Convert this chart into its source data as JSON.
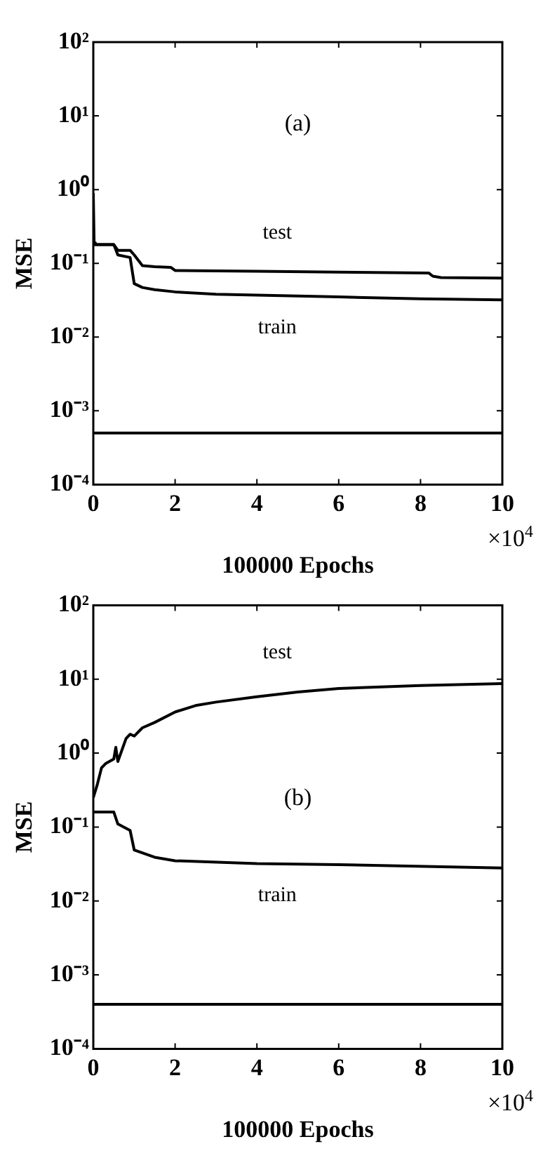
{
  "chart_data": [
    {
      "type": "line",
      "xlabel": "100000 Epochs",
      "ylabel": "MSE",
      "annotations": [
        "(a)",
        "×10$^{4}$"
      ],
      "log": "y",
      "grid": false,
      "legend": false,
      "marker": "none",
      "line_style": "solid",
      "xlim": [
        0,
        10
      ],
      "xticks": [
        0,
        2,
        4,
        6,
        8,
        10
      ],
      "ylim": [
        0.0001,
        100
      ],
      "yticks": [
        {
          "value": 0.0001,
          "label": "10⁻⁴"
        },
        {
          "value": 0.001,
          "label": "10⁻³"
        },
        {
          "value": 0.01,
          "label": "10⁻²"
        },
        {
          "value": 0.1,
          "label": "10⁻¹"
        },
        {
          "value": 1,
          "label": "10⁰"
        },
        {
          "value": 10,
          "label": "10¹"
        },
        {
          "value": 100,
          "label": "10²"
        }
      ],
      "ref_lines": [
        {
          "axis": "y",
          "value": 0.0005,
          "color": "#000000"
        }
      ],
      "series": [
        {
          "name": "test",
          "color": "#000000",
          "x": [
            0,
            0.02,
            0.05,
            0.5,
            0.6,
            0.9,
            1.0,
            1.2,
            1.5,
            1.9,
            2.0,
            4,
            6,
            8.2,
            8.3,
            8.5,
            10
          ],
          "values": [
            0.9,
            0.19,
            0.18,
            0.18,
            0.15,
            0.15,
            0.13,
            0.093,
            0.09,
            0.088,
            0.08,
            0.078,
            0.076,
            0.074,
            0.067,
            0.064,
            0.063
          ]
        },
        {
          "name": "train",
          "color": "#000000",
          "x": [
            0,
            0.5,
            0.6,
            0.9,
            1.0,
            1.2,
            1.5,
            2,
            3,
            4,
            6,
            8,
            10
          ],
          "values": [
            0.18,
            0.18,
            0.13,
            0.12,
            0.053,
            0.047,
            0.044,
            0.041,
            0.038,
            0.037,
            0.035,
            0.033,
            0.032
          ]
        }
      ]
    },
    {
      "type": "line",
      "xlabel": "100000 Epochs",
      "ylabel": "MSE",
      "annotations": [
        "(b)",
        "×10$^{4}$"
      ],
      "log": "y",
      "grid": false,
      "legend": false,
      "marker": "none",
      "line_style": "solid",
      "xlim": [
        0,
        10
      ],
      "xticks": [
        0,
        2,
        4,
        6,
        8,
        10
      ],
      "ylim": [
        0.0001,
        100
      ],
      "yticks": [
        {
          "value": 0.0001,
          "label": "10⁻⁴"
        },
        {
          "value": 0.001,
          "label": "10⁻³"
        },
        {
          "value": 0.01,
          "label": "10⁻²"
        },
        {
          "value": 0.1,
          "label": "10⁻¹"
        },
        {
          "value": 1,
          "label": "10⁰"
        },
        {
          "value": 10,
          "label": "10¹"
        },
        {
          "value": 100,
          "label": "10²"
        }
      ],
      "ref_lines": [
        {
          "axis": "y",
          "value": 0.0004,
          "color": "#000000"
        }
      ],
      "series": [
        {
          "name": "test",
          "color": "#000000",
          "x": [
            0,
            0.1,
            0.2,
            0.3,
            0.5,
            0.55,
            0.6,
            0.8,
            0.9,
            1.0,
            1.2,
            1.5,
            2.0,
            2.5,
            3,
            4,
            5,
            6,
            8,
            10
          ],
          "values": [
            0.25,
            0.38,
            0.63,
            0.72,
            0.83,
            1.2,
            0.77,
            1.57,
            1.8,
            1.7,
            2.2,
            2.6,
            3.6,
            4.4,
            4.9,
            5.8,
            6.7,
            7.5,
            8.2,
            8.7
          ]
        },
        {
          "name": "train",
          "color": "#000000",
          "x": [
            0,
            0.5,
            0.6,
            0.9,
            1.0,
            1.5,
            2,
            4,
            6,
            10
          ],
          "values": [
            0.16,
            0.16,
            0.11,
            0.09,
            0.049,
            0.039,
            0.035,
            0.032,
            0.031,
            0.028
          ]
        }
      ]
    }
  ]
}
